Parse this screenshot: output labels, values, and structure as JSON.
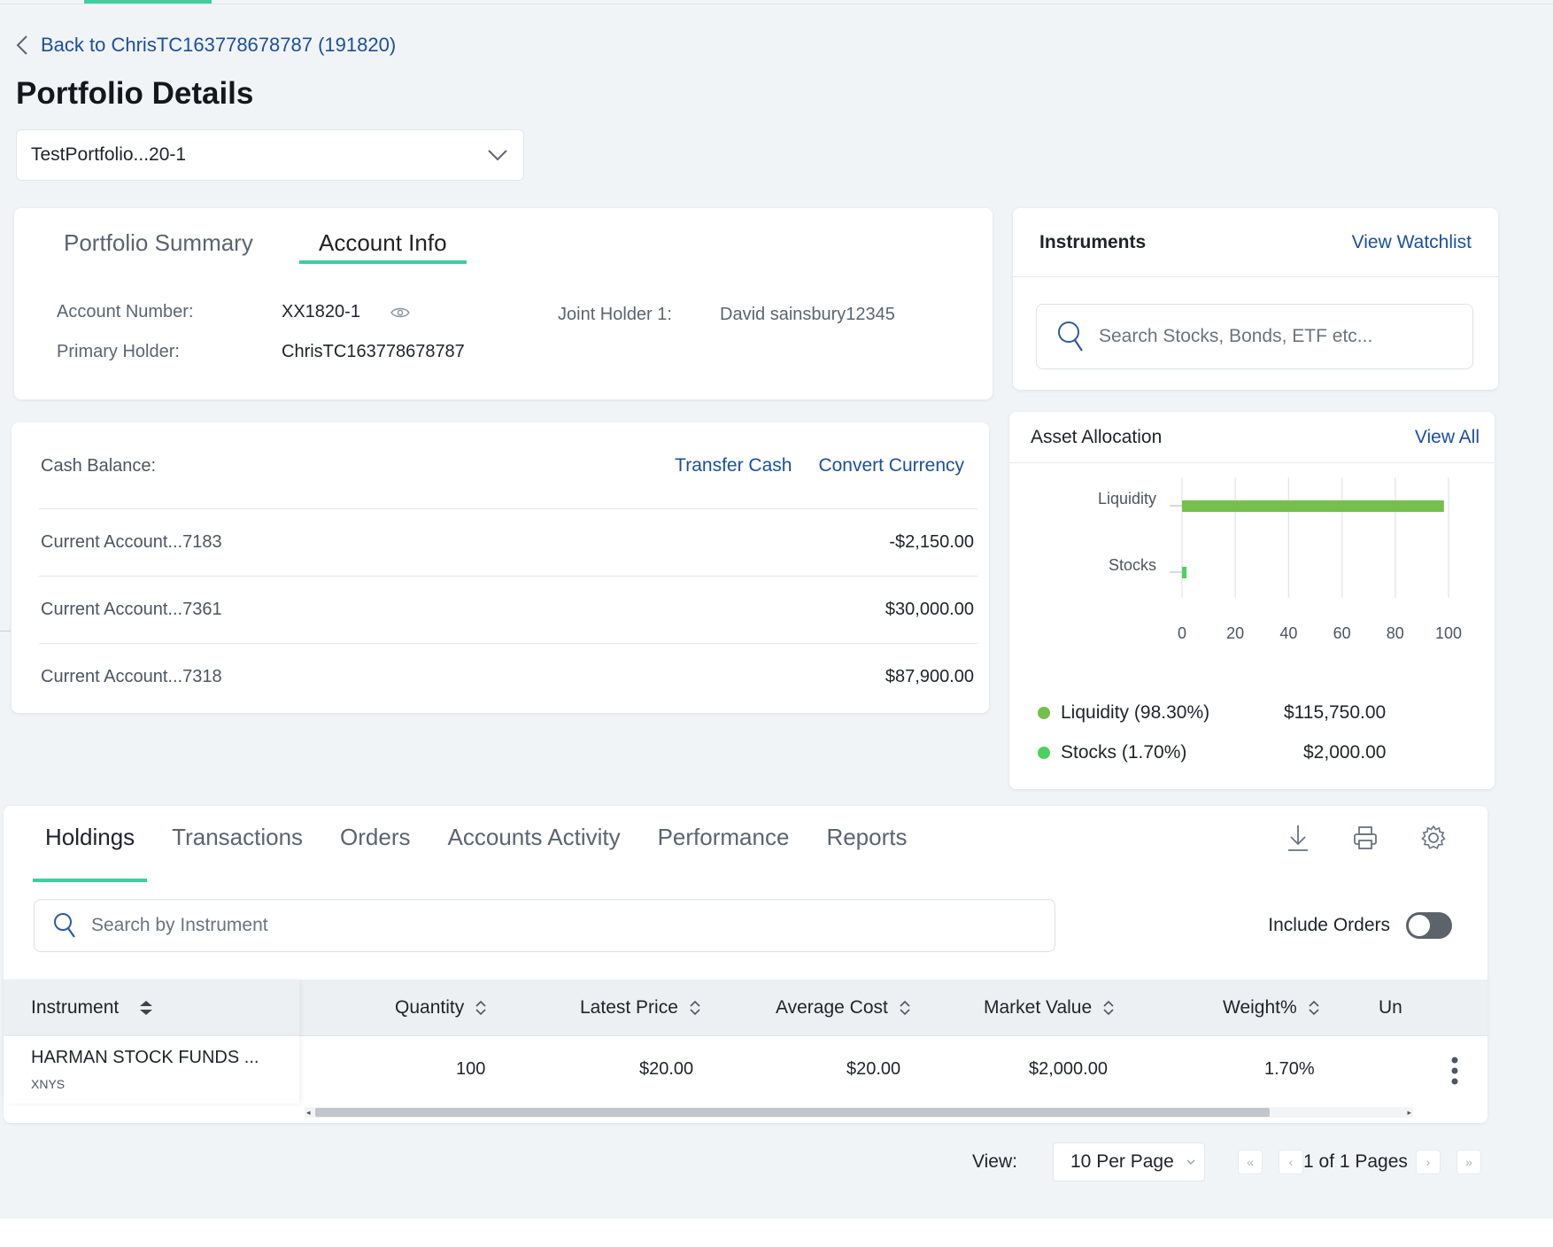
{
  "nav": {
    "back_label": "Back to ChrisTC163778678787 (191820)",
    "page_title": "Portfolio Details",
    "portfolio_select": "TestPortfolio...20-1"
  },
  "account_card": {
    "tabs": [
      "Portfolio Summary",
      "Account Info"
    ],
    "account_number_label": "Account Number:",
    "account_number_value": "XX1820-1",
    "primary_holder_label": "Primary Holder:",
    "primary_holder_value": "ChrisTC163778678787",
    "joint_holder_label": "Joint Holder 1:",
    "joint_holder_value": "David sainsbury12345"
  },
  "instruments": {
    "title": "Instruments",
    "watchlist_link": "View Watchlist",
    "search_placeholder": "Search Stocks, Bonds, ETF etc..."
  },
  "cash": {
    "label": "Cash Balance:",
    "transfer_link": "Transfer Cash",
    "convert_link": "Convert Currency",
    "accounts": [
      {
        "name": "Current Account...7183",
        "amount": "-$2,150.00"
      },
      {
        "name": "Current Account...7361",
        "amount": "$30,000.00"
      },
      {
        "name": "Current Account...7318",
        "amount": "$87,900.00"
      }
    ]
  },
  "allocation": {
    "title": "Asset Allocation",
    "view_all": "View All",
    "legend": [
      {
        "label": "Liquidity",
        "pct": "(98.30%)",
        "value": "$115,750.00",
        "color": "#74c04b"
      },
      {
        "label": "Stocks",
        "pct": "(1.70%)",
        "value": "$2,000.00",
        "color": "#4cd25c"
      }
    ]
  },
  "chart_data": {
    "type": "bar",
    "orientation": "horizontal",
    "categories": [
      "Liquidity",
      "Stocks"
    ],
    "values": [
      98.3,
      1.7
    ],
    "colors": [
      "#74c04b",
      "#4cd25c"
    ],
    "xlim": [
      0,
      100
    ],
    "xticks": [
      0,
      20,
      40,
      60,
      80,
      100
    ],
    "grid": true,
    "title": "",
    "xlabel": "",
    "ylabel": ""
  },
  "holdings": {
    "tabs": [
      "Holdings",
      "Transactions",
      "Orders",
      "Accounts Activity",
      "Performance",
      "Reports"
    ],
    "search_placeholder": "Search by Instrument",
    "include_orders_label": "Include Orders",
    "columns": [
      "Instrument",
      "Quantity",
      "Latest Price",
      "Average Cost",
      "Market Value",
      "Weight%",
      "Un"
    ],
    "rows": [
      {
        "instrument": "HARMAN STOCK FUNDS ...",
        "exchange": "XNYS",
        "quantity": "100",
        "latest_price": "$20.00",
        "average_cost": "$20.00",
        "market_value": "$2,000.00",
        "weight": "1.70%"
      }
    ]
  },
  "pagination": {
    "view_label": "View:",
    "per_page": "10 Per Page",
    "pages": "1 of 1 Pages"
  }
}
